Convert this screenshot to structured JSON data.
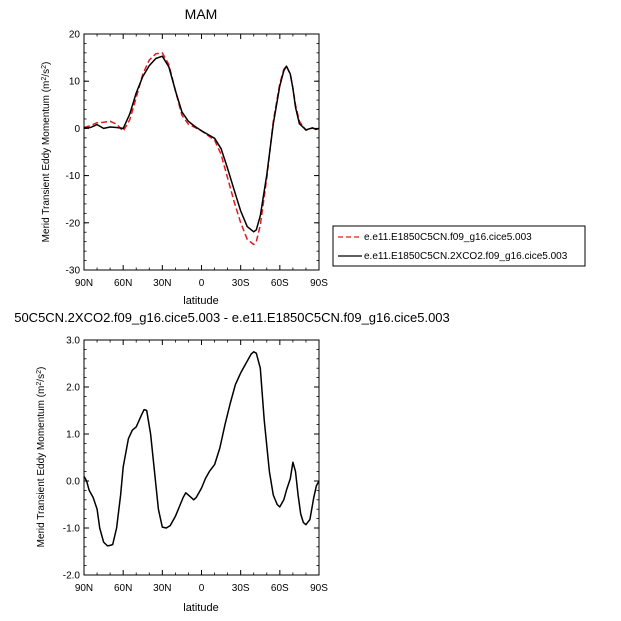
{
  "chart_data": [
    {
      "type": "line",
      "title": "MAM",
      "xlabel": "latitude",
      "ylabel": "Merid Transient Eddy Momentum (m²/s²)",
      "ylabel_main": "Merid Transient Eddy Momentum (m",
      "ylabel_mid": "/s",
      "ylabel_end": ")",
      "ylabel_sup": "2",
      "xlim": [
        90,
        -90
      ],
      "ylim": [
        -30,
        20
      ],
      "xticks": [
        90,
        60,
        30,
        0,
        -30,
        -60,
        -90
      ],
      "xtick_labels": [
        "90N",
        "60N",
        "30N",
        "0",
        "30S",
        "60S",
        "90S"
      ],
      "yticks": [
        20,
        10,
        0,
        -10,
        -20,
        -30
      ],
      "ytick_labels": [
        "20",
        "10",
        "0",
        "-10",
        "-20",
        "-30"
      ],
      "legend_position": "right",
      "series": [
        {
          "name": "e.e11.E1850C5CN.f09_g16.cice5.003",
          "color": "#e41a1c",
          "dash": true,
          "x": [
            90,
            85,
            80,
            75,
            70,
            65,
            60,
            55,
            50,
            45,
            40,
            35,
            30,
            25,
            20,
            15,
            10,
            5,
            0,
            -5,
            -10,
            -15,
            -20,
            -25,
            -30,
            -35,
            -40,
            -42,
            -45,
            -50,
            -55,
            -60,
            -63,
            -65,
            -68,
            -70,
            -72,
            -75,
            -80,
            -85,
            -88,
            -90
          ],
          "y": [
            0.2,
            0.6,
            1.2,
            1.3,
            1.5,
            0.9,
            -0.6,
            1.8,
            6.5,
            11.5,
            14.5,
            15.8,
            16.0,
            13.5,
            8.0,
            2.8,
            0.9,
            0.2,
            -0.5,
            -1.5,
            -2.5,
            -5.5,
            -10.5,
            -15.5,
            -20.0,
            -23.5,
            -24.6,
            -24.0,
            -20.5,
            -10.5,
            1.5,
            9.5,
            12.5,
            13.2,
            11.5,
            8.5,
            5.0,
            1.5,
            -0.4,
            0.1,
            -0.3,
            0.0
          ]
        },
        {
          "name": "e.e11.E1850C5CN.2XCO2.f09_g16.cice5.003",
          "color": "#000000",
          "dash": false,
          "x": [
            90,
            85,
            80,
            75,
            70,
            65,
            60,
            55,
            50,
            45,
            40,
            35,
            30,
            25,
            20,
            15,
            10,
            5,
            0,
            -5,
            -10,
            -15,
            -20,
            -25,
            -30,
            -35,
            -40,
            -42,
            -45,
            -50,
            -55,
            -60,
            -63,
            -65,
            -68,
            -70,
            -72,
            -75,
            -80,
            -85,
            -88,
            -90
          ],
          "y": [
            0.1,
            0.2,
            0.8,
            0.0,
            0.3,
            0.2,
            0.0,
            3.0,
            7.5,
            11.0,
            13.3,
            14.8,
            15.3,
            13.0,
            8.0,
            3.5,
            1.5,
            0.4,
            -0.5,
            -1.3,
            -2.1,
            -4.3,
            -8.5,
            -13.0,
            -17.5,
            -20.8,
            -21.9,
            -21.5,
            -18.5,
            -9.8,
            1.0,
            9.0,
            12.2,
            13.2,
            11.5,
            8.5,
            4.5,
            1.0,
            -0.3,
            0.1,
            -0.2,
            0.0
          ]
        }
      ]
    },
    {
      "type": "line",
      "title": "50C5CN.2XCO2.f09_g16.cice5.003 - e.e11.E1850C5CN.f09_g16.cice5.003",
      "xlabel": "latitude",
      "ylabel": "Merid Transient Eddy Momentum (m²/s²)",
      "ylabel_main": "Merid Transient Eddy Momentum (m",
      "ylabel_mid": "/s",
      "ylabel_end": ")",
      "ylabel_sup": "2",
      "xlim": [
        90,
        -90
      ],
      "ylim": [
        -2.0,
        3.0
      ],
      "xticks": [
        90,
        60,
        30,
        0,
        -30,
        -60,
        -90
      ],
      "xtick_labels": [
        "90N",
        "60N",
        "30N",
        "0",
        "30S",
        "60S",
        "90S"
      ],
      "yticks": [
        3.0,
        2.0,
        1.0,
        0.0,
        -1.0,
        -2.0
      ],
      "ytick_labels": [
        "3.0",
        "2.0",
        "1.0",
        "0.0",
        "-1.0",
        "-2.0"
      ],
      "series": [
        {
          "color": "#000000",
          "dash": false,
          "x": [
            90,
            88,
            86,
            83,
            80,
            78,
            75,
            72,
            70,
            68,
            65,
            62,
            60,
            56,
            53,
            50,
            46,
            44,
            42,
            39,
            36,
            33,
            30,
            27,
            24,
            20,
            17,
            14,
            12,
            10,
            8,
            6,
            4,
            2,
            0,
            -3,
            -6,
            -10,
            -14,
            -18,
            -22,
            -26,
            -30,
            -34,
            -38,
            -40,
            -42,
            -45,
            -48,
            -52,
            -55,
            -58,
            -60,
            -63,
            -65,
            -68,
            -70,
            -72,
            -74,
            -76,
            -78,
            -80,
            -83,
            -86,
            -88,
            -90
          ],
          "y": [
            0.1,
            0.0,
            -0.2,
            -0.35,
            -0.6,
            -1.0,
            -1.3,
            -1.38,
            -1.37,
            -1.35,
            -1.0,
            -0.3,
            0.3,
            0.9,
            1.08,
            1.15,
            1.4,
            1.52,
            1.5,
            1.0,
            0.2,
            -0.6,
            -0.98,
            -1.0,
            -0.95,
            -0.75,
            -0.55,
            -0.35,
            -0.25,
            -0.3,
            -0.35,
            -0.4,
            -0.35,
            -0.25,
            -0.15,
            0.05,
            0.2,
            0.35,
            0.7,
            1.2,
            1.65,
            2.05,
            2.3,
            2.5,
            2.7,
            2.75,
            2.72,
            2.4,
            1.3,
            0.2,
            -0.3,
            -0.5,
            -0.55,
            -0.4,
            -0.2,
            0.05,
            0.4,
            0.2,
            -0.3,
            -0.7,
            -0.88,
            -0.93,
            -0.82,
            -0.35,
            -0.1,
            0.0
          ]
        }
      ]
    }
  ]
}
